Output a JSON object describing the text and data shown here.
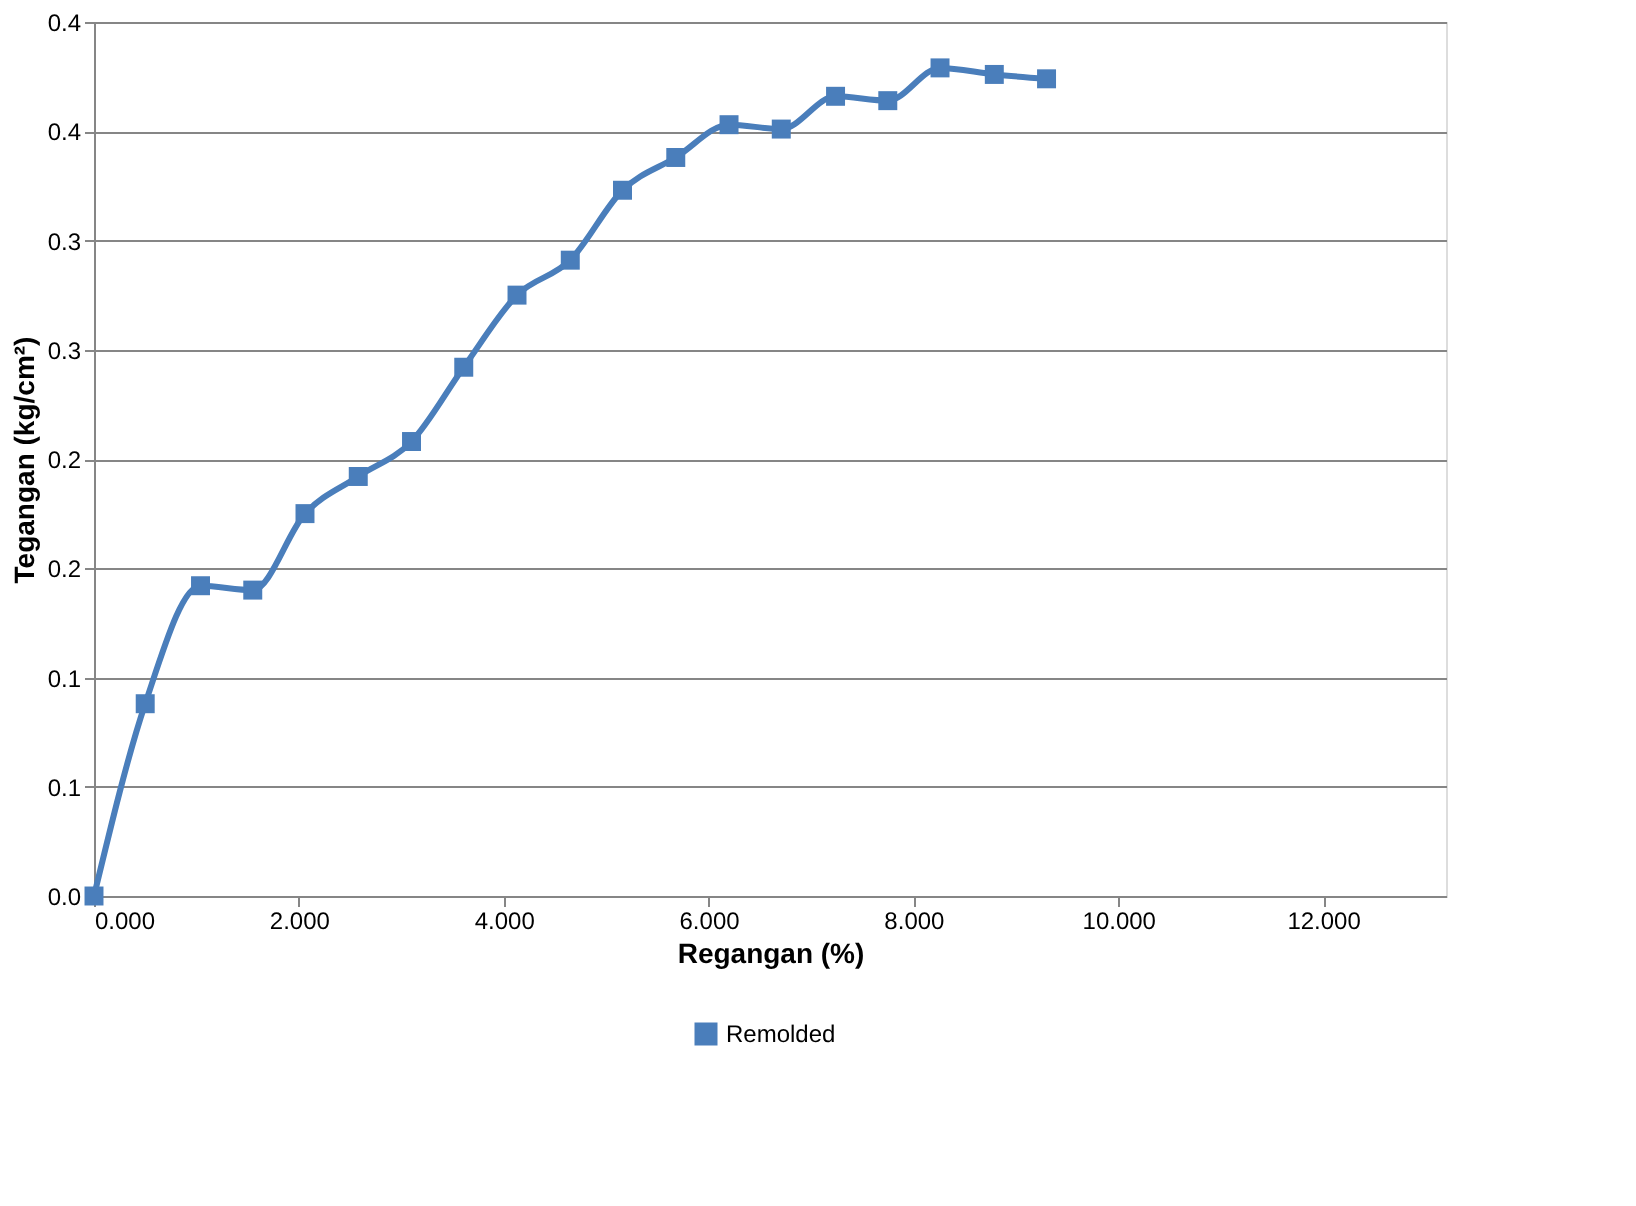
{
  "chart_data": {
    "type": "line",
    "xlabel": "Regangan (%)",
    "ylabel": "Tegangan (kg/cm²)",
    "x": [
      0,
      0.5,
      1.04,
      1.55,
      2.06,
      2.58,
      3.1,
      3.61,
      4.13,
      4.65,
      5.16,
      5.68,
      6.2,
      6.71,
      7.24,
      7.75,
      8.26,
      8.79,
      9.3
    ],
    "series": [
      {
        "name": "Remolded",
        "color": "#4a7ebb",
        "values": [
          0,
          0.088,
          0.142,
          0.14,
          0.175,
          0.192,
          0.208,
          0.242,
          0.275,
          0.291,
          0.323,
          0.338,
          0.353,
          0.351,
          0.366,
          0.364,
          0.379,
          0.376,
          0.374
        ]
      }
    ],
    "xlim": [
      0,
      13.2
    ],
    "xticks": [
      {
        "value": 0,
        "label": "0.000"
      },
      {
        "value": 2,
        "label": "2.000"
      },
      {
        "value": 4,
        "label": "4.000"
      },
      {
        "value": 6,
        "label": "6.000"
      },
      {
        "value": 8,
        "label": "8.000"
      },
      {
        "value": 10,
        "label": "10.000"
      },
      {
        "value": 12,
        "label": "12.000"
      }
    ],
    "ylim": [
      0,
      0.4
    ],
    "yticks": [
      {
        "value": 0,
        "label": "0.0"
      },
      {
        "value": 0.05,
        "label": "0.1"
      },
      {
        "value": 0.1,
        "label": "0.1"
      },
      {
        "value": 0.15,
        "label": "0.2"
      },
      {
        "value": 0.2,
        "label": "0.2"
      },
      {
        "value": 0.25,
        "label": "0.3"
      },
      {
        "value": 0.3,
        "label": "0.3"
      },
      {
        "value": 0.35,
        "label": "0.4"
      },
      {
        "value": 0.4,
        "label": "0.4"
      }
    ],
    "grid": "y",
    "legend": "bottom",
    "marker": "square",
    "line_style": "solid"
  }
}
